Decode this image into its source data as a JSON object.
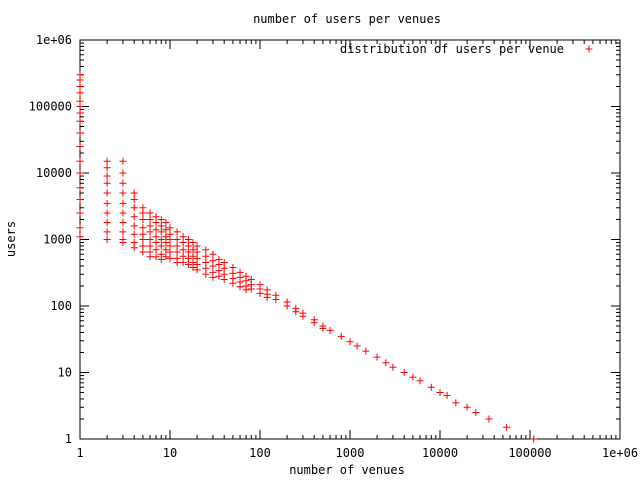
{
  "chart_data": {
    "type": "scatter",
    "title": "number of users per venues",
    "xlabel": "number of venues",
    "ylabel": "users",
    "xscale": "log",
    "yscale": "log",
    "xlim": [
      1,
      1000000
    ],
    "ylim": [
      1,
      1000000
    ],
    "xticks": [
      "1",
      "10",
      "100",
      "1000",
      "10000",
      "100000",
      "1e+06"
    ],
    "yticks": [
      "1",
      "10",
      "100",
      "1000",
      "10000",
      "100000",
      "1e+06"
    ],
    "grid": false,
    "legend_position": "top-right",
    "series": [
      {
        "name": "distribution of users per venue",
        "color": "#ff0000",
        "marker": "+",
        "points": [
          [
            1,
            300000
          ],
          [
            1,
            250000
          ],
          [
            1,
            200000
          ],
          [
            1,
            160000
          ],
          [
            1,
            120000
          ],
          [
            1,
            100000
          ],
          [
            1,
            80000
          ],
          [
            1,
            60000
          ],
          [
            1,
            40000
          ],
          [
            1,
            25000
          ],
          [
            1,
            15000
          ],
          [
            1,
            10000
          ],
          [
            1,
            6000
          ],
          [
            1,
            4000
          ],
          [
            1,
            2500
          ],
          [
            1,
            1500
          ],
          [
            1,
            1100
          ],
          [
            2,
            15000
          ],
          [
            2,
            12000
          ],
          [
            2,
            9000
          ],
          [
            2,
            7000
          ],
          [
            2,
            5000
          ],
          [
            2,
            3500
          ],
          [
            2,
            2500
          ],
          [
            2,
            1800
          ],
          [
            2,
            1300
          ],
          [
            2,
            1000
          ],
          [
            3,
            15000
          ],
          [
            3,
            10000
          ],
          [
            3,
            7000
          ],
          [
            3,
            5000
          ],
          [
            3,
            3500
          ],
          [
            3,
            2500
          ],
          [
            3,
            1800
          ],
          [
            3,
            1300
          ],
          [
            3,
            1000
          ],
          [
            3,
            900
          ],
          [
            4,
            5000
          ],
          [
            4,
            4000
          ],
          [
            4,
            3000
          ],
          [
            4,
            2200
          ],
          [
            4,
            1600
          ],
          [
            4,
            1200
          ],
          [
            4,
            900
          ],
          [
            4,
            750
          ],
          [
            5,
            3000
          ],
          [
            5,
            2500
          ],
          [
            5,
            2000
          ],
          [
            5,
            1500
          ],
          [
            5,
            1200
          ],
          [
            5,
            1000
          ],
          [
            5,
            800
          ],
          [
            5,
            650
          ],
          [
            6,
            2500
          ],
          [
            6,
            2000
          ],
          [
            6,
            1600
          ],
          [
            6,
            1300
          ],
          [
            6,
            1000
          ],
          [
            6,
            800
          ],
          [
            6,
            650
          ],
          [
            6,
            550
          ],
          [
            7,
            2200
          ],
          [
            7,
            1800
          ],
          [
            7,
            1400
          ],
          [
            7,
            1100
          ],
          [
            7,
            900
          ],
          [
            7,
            700
          ],
          [
            7,
            550
          ],
          [
            8,
            2000
          ],
          [
            8,
            1600
          ],
          [
            8,
            1300
          ],
          [
            8,
            1000
          ],
          [
            8,
            800
          ],
          [
            8,
            600
          ],
          [
            8,
            500
          ],
          [
            9,
            1800
          ],
          [
            9,
            1400
          ],
          [
            9,
            1100
          ],
          [
            9,
            900
          ],
          [
            9,
            700
          ],
          [
            9,
            550
          ],
          [
            10,
            1500
          ],
          [
            10,
            1200
          ],
          [
            10,
            1000
          ],
          [
            10,
            800
          ],
          [
            10,
            650
          ],
          [
            10,
            520
          ],
          [
            12,
            1300
          ],
          [
            12,
            1000
          ],
          [
            12,
            800
          ],
          [
            12,
            650
          ],
          [
            12,
            520
          ],
          [
            12,
            450
          ],
          [
            14,
            1100
          ],
          [
            14,
            900
          ],
          [
            14,
            700
          ],
          [
            14,
            560
          ],
          [
            14,
            450
          ],
          [
            16,
            1000
          ],
          [
            16,
            800
          ],
          [
            16,
            650
          ],
          [
            16,
            520
          ],
          [
            16,
            420
          ],
          [
            18,
            900
          ],
          [
            18,
            700
          ],
          [
            18,
            560
          ],
          [
            18,
            450
          ],
          [
            18,
            380
          ],
          [
            20,
            800
          ],
          [
            20,
            650
          ],
          [
            20,
            520
          ],
          [
            20,
            420
          ],
          [
            20,
            350
          ],
          [
            25,
            700
          ],
          [
            25,
            560
          ],
          [
            25,
            450
          ],
          [
            25,
            370
          ],
          [
            25,
            300
          ],
          [
            30,
            600
          ],
          [
            30,
            480
          ],
          [
            30,
            400
          ],
          [
            30,
            320
          ],
          [
            30,
            270
          ],
          [
            35,
            500
          ],
          [
            35,
            420
          ],
          [
            35,
            340
          ],
          [
            35,
            280
          ],
          [
            40,
            450
          ],
          [
            40,
            370
          ],
          [
            40,
            300
          ],
          [
            40,
            250
          ],
          [
            50,
            380
          ],
          [
            50,
            310
          ],
          [
            50,
            260
          ],
          [
            50,
            220
          ],
          [
            60,
            320
          ],
          [
            60,
            270
          ],
          [
            60,
            230
          ],
          [
            60,
            195
          ],
          [
            70,
            280
          ],
          [
            70,
            240
          ],
          [
            70,
            200
          ],
          [
            70,
            175
          ],
          [
            80,
            250
          ],
          [
            80,
            210
          ],
          [
            80,
            180
          ],
          [
            100,
            210
          ],
          [
            100,
            180
          ],
          [
            100,
            155
          ],
          [
            120,
            175
          ],
          [
            120,
            150
          ],
          [
            120,
            135
          ],
          [
            150,
            145
          ],
          [
            150,
            125
          ],
          [
            200,
            115
          ],
          [
            200,
            100
          ],
          [
            250,
            92
          ],
          [
            250,
            82
          ],
          [
            300,
            78
          ],
          [
            300,
            70
          ],
          [
            400,
            62
          ],
          [
            400,
            56
          ],
          [
            500,
            50
          ],
          [
            500,
            46
          ],
          [
            600,
            43
          ],
          [
            800,
            35
          ],
          [
            1000,
            29
          ],
          [
            1200,
            25
          ],
          [
            1500,
            21
          ],
          [
            2000,
            17
          ],
          [
            2500,
            14
          ],
          [
            3000,
            12
          ],
          [
            4000,
            10
          ],
          [
            5000,
            8.5
          ],
          [
            6000,
            7.5
          ],
          [
            8000,
            6
          ],
          [
            10000,
            5
          ],
          [
            12000,
            4.5
          ],
          [
            15000,
            3.5
          ],
          [
            20000,
            3
          ],
          [
            25000,
            2.5
          ],
          [
            35000,
            2
          ],
          [
            55000,
            1.5
          ],
          [
            110000,
            1
          ]
        ]
      }
    ]
  }
}
